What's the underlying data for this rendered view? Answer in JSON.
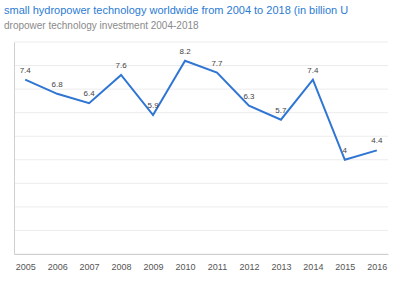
{
  "chart_data": {
    "type": "line",
    "title": "small hydropower technology worldwide from 2004 to 2018 (in billion U",
    "subtitle": "dropower technology investment 2004-2018",
    "categories": [
      "2005",
      "2006",
      "2007",
      "2008",
      "2009",
      "2010",
      "2011",
      "2012",
      "2013",
      "2014",
      "2015",
      "2016"
    ],
    "values": [
      7.4,
      6.8,
      6.4,
      7.6,
      5.9,
      8.2,
      7.7,
      6.3,
      5.7,
      7.4,
      4,
      4.4
    ],
    "color": "#2f75d3",
    "ylim": [
      0,
      9
    ],
    "yticks": [
      0,
      1,
      2,
      3,
      4,
      5,
      6,
      7,
      8,
      9
    ],
    "grid": true,
    "data_labels": true,
    "tick_labels": "x"
  }
}
